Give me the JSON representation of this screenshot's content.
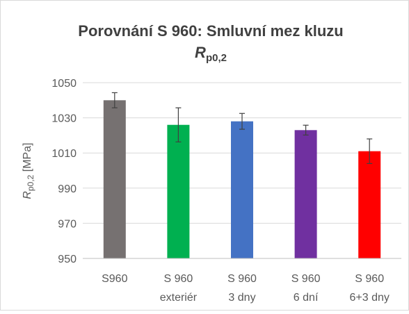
{
  "chart_data": {
    "type": "bar",
    "title": "Porovnání S 960:  Smluvní mez kluzu",
    "title_symbol": {
      "main": "R",
      "sub": "p0,2"
    },
    "ylabel": {
      "main": "R",
      "sub": "p0,2",
      "unit": " [MPa]"
    },
    "categories": [
      [
        "S960"
      ],
      [
        "S 960",
        "exteriér"
      ],
      [
        "S 960",
        "3 dny"
      ],
      [
        "S 960",
        "6 dní"
      ],
      [
        "S 960",
        "6+3 dny"
      ]
    ],
    "values": [
      1040,
      1026,
      1028,
      1023,
      1011
    ],
    "errors": [
      4.3,
      9.7,
      4.5,
      2.8,
      7
    ],
    "colors": [
      "#767171",
      "#00b050",
      "#4472c4",
      "#7030a0",
      "#ff0000"
    ],
    "ylim": [
      950,
      1050
    ],
    "yticks": [
      950,
      970,
      990,
      1010,
      1030,
      1050
    ],
    "grid": true
  }
}
